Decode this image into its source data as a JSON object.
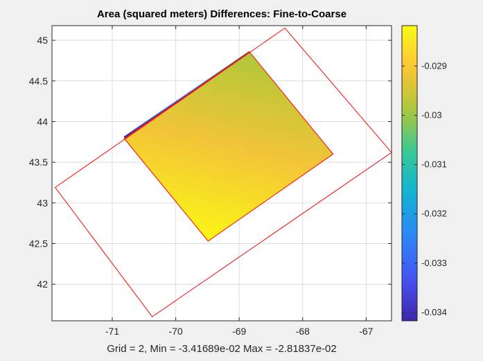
{
  "chart_data": {
    "type": "heatmap",
    "title": "Area (squared meters) Differences: Fine-to-Coarse",
    "xlabel": "Grid = 2,    Min = -3.41689e-02    Max = -2.81837e-02",
    "ylabel": "",
    "xlim": [
      -71.95,
      -66.6
    ],
    "ylim": [
      41.55,
      45.18
    ],
    "xticks": [
      -71,
      -70,
      -69,
      -68,
      -67
    ],
    "yticks": [
      42,
      42.5,
      43,
      43.5,
      44,
      44.5,
      45
    ],
    "grid": true,
    "colormap": "parula",
    "clim": [
      -0.03417,
      -0.02818
    ],
    "colorbar_ticks": [
      -0.029,
      -0.03,
      -0.031,
      -0.032,
      -0.033,
      -0.034
    ],
    "outer_outline": {
      "color": "#ff0000",
      "points": [
        [
          -71.9,
          43.19
        ],
        [
          -68.28,
          45.15
        ],
        [
          -66.6,
          43.62
        ],
        [
          -70.37,
          41.6
        ]
      ]
    },
    "inner_outline": {
      "color": "#ff0000",
      "points": [
        [
          -70.81,
          43.79
        ],
        [
          -68.84,
          44.86
        ],
        [
          -67.52,
          43.6
        ],
        [
          -69.49,
          42.53
        ]
      ]
    },
    "field_gradient": [
      {
        "offset": 0.0,
        "value": -0.02825
      },
      {
        "offset": 0.5,
        "value": -0.02915
      },
      {
        "offset": 1.0,
        "value": -0.02985
      }
    ],
    "low_edge": {
      "from": [
        -70.8,
        43.81
      ],
      "to": [
        -68.85,
        44.85
      ],
      "values": [
        -0.034,
        -0.0325,
        -0.031
      ]
    },
    "min": -0.0341689,
    "max": -0.0281837
  }
}
